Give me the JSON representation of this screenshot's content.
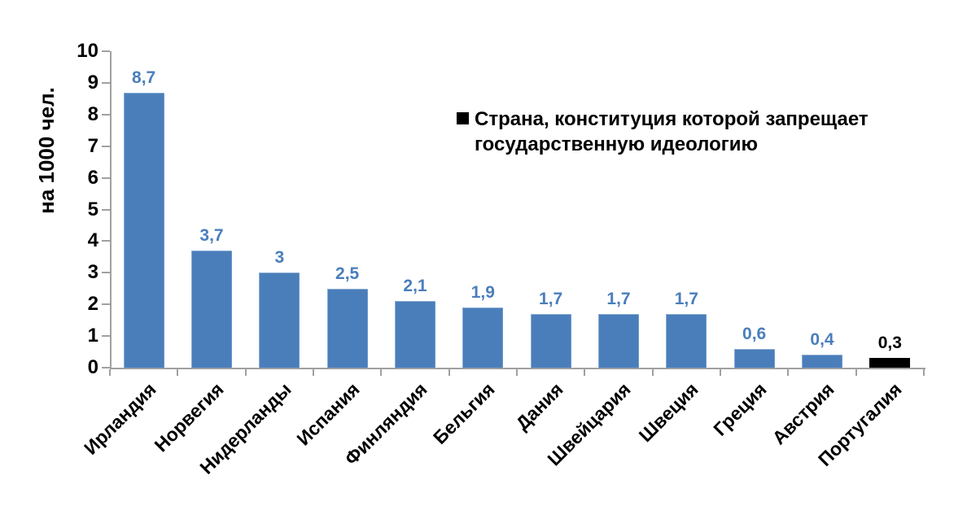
{
  "chart_data": {
    "type": "bar",
    "categories": [
      "Ирландия",
      "Норвегия",
      "Нидерланды",
      "Испания",
      "Финляндия",
      "Бельгия",
      "Дания",
      "Швейцария",
      "Швеция",
      "Греция",
      "Австрия",
      "Португалия"
    ],
    "values": [
      8.7,
      3.7,
      3,
      2.5,
      2.1,
      1.9,
      1.7,
      1.7,
      1.7,
      0.6,
      0.4,
      0.3
    ],
    "value_labels": [
      "8,7",
      "3,7",
      "3",
      "2,5",
      "2,1",
      "1,9",
      "1,7",
      "1,7",
      "1,7",
      "0,6",
      "0,4",
      "0,3"
    ],
    "title": "",
    "xlabel": "",
    "ylabel": "на 1000 чел.",
    "ylim": [
      0,
      10
    ],
    "ytick_step": 1,
    "ytick_labels": [
      "0",
      "1",
      "2",
      "3",
      "4",
      "5",
      "6",
      "7",
      "8",
      "9",
      "10"
    ],
    "grid": false,
    "bar_orientation": "vertical",
    "category_label_rotation_deg": -45,
    "legend": {
      "position": "inside-top-right",
      "marker_color": "#000000",
      "label": "Страна, конституция которой запрещает государственную идеологию",
      "label_lines": [
        "Страна, конституция которой запрещает",
        "государственную идеологию"
      ]
    },
    "highlight": {
      "category": "Португалия",
      "color": "#000000"
    },
    "colors": {
      "bar": "#4a7ebb",
      "bar_highlight": "#000000",
      "value_label": "#4a7ebb",
      "value_label_highlight": "#000000",
      "axis": "#a0a0a0",
      "text": "#000000",
      "background": "#ffffff"
    }
  }
}
